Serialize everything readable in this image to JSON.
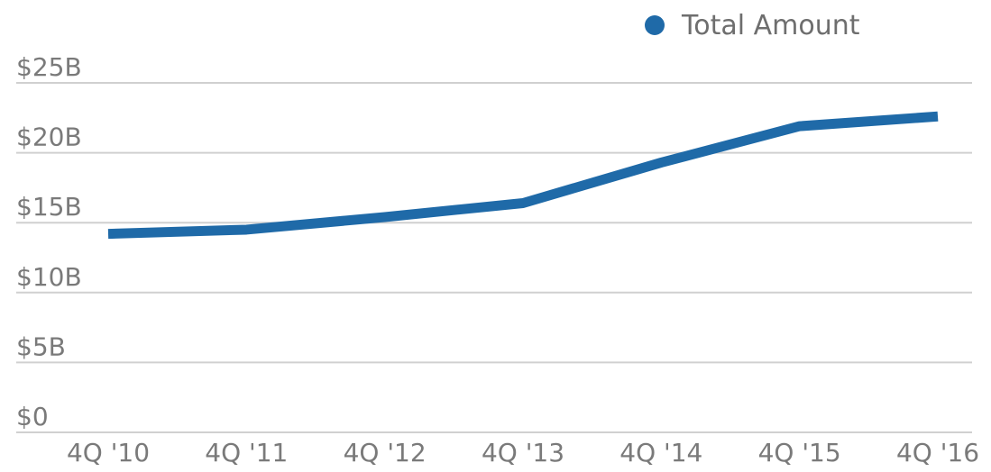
{
  "chart_data": {
    "type": "line",
    "title": "",
    "xlabel": "",
    "ylabel": "",
    "categories": [
      "4Q '10",
      "4Q '11",
      "4Q '12",
      "4Q '13",
      "4Q '14",
      "4Q '15",
      "4Q '16"
    ],
    "series": [
      {
        "name": "Total Amount",
        "color": "#1f6aa8",
        "values": [
          14.2,
          14.5,
          15.4,
          16.4,
          19.3,
          21.9,
          22.6
        ]
      }
    ],
    "y_ticks": [
      {
        "value": 0,
        "label": "$0"
      },
      {
        "value": 5,
        "label": "$5B"
      },
      {
        "value": 10,
        "label": "$10B"
      },
      {
        "value": 15,
        "label": "$15B"
      },
      {
        "value": 20,
        "label": "$20B"
      },
      {
        "value": 25,
        "label": "$25B"
      }
    ],
    "ylim": [
      0,
      25
    ],
    "grid": true,
    "legend": {
      "position": "top-right",
      "marker": "circle"
    }
  }
}
